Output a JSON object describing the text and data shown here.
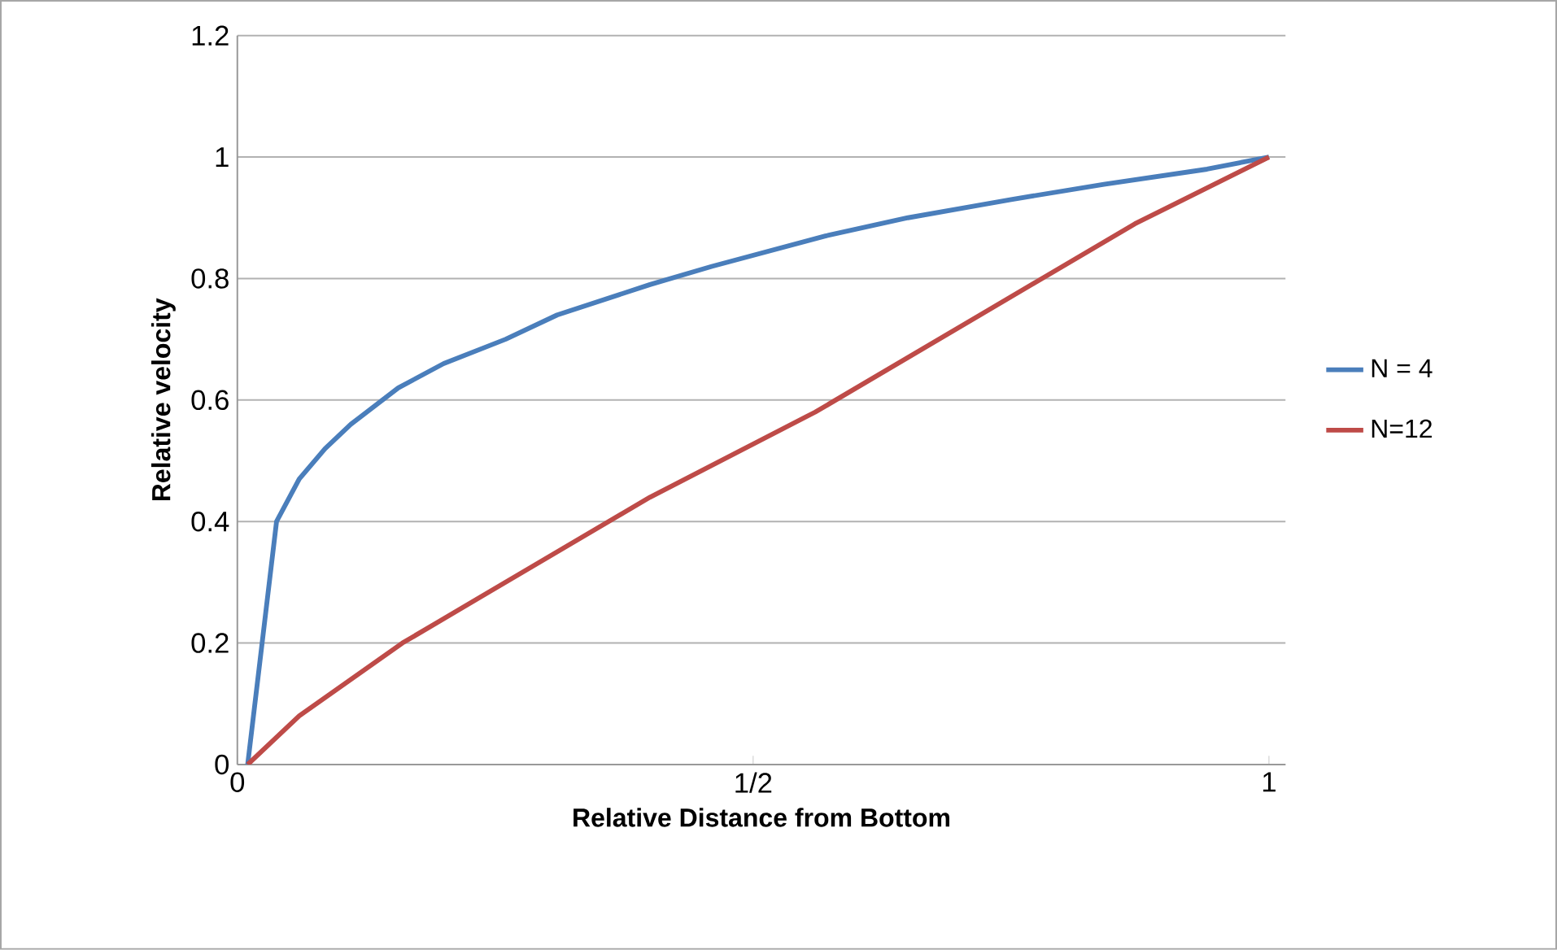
{
  "chart_data": {
    "type": "line",
    "xlabel": "Relative Distance from Bottom",
    "ylabel": "Relative  velocity",
    "xlim": [
      0,
      1.016
    ],
    "xticks": [
      0,
      {
        "value": 0.5,
        "label": "1/2"
      },
      1
    ],
    "ylim": [
      0,
      1.2
    ],
    "yticks": [
      0,
      0.2,
      0.4,
      0.6,
      0.8,
      1,
      1.2
    ],
    "grid": "y",
    "legend": "right",
    "series": [
      {
        "name": "N = 4",
        "color": "#4a7ebb",
        "x": [
          0.01,
          0.038,
          0.06,
          0.085,
          0.11,
          0.156,
          0.2,
          0.26,
          0.31,
          0.4,
          0.46,
          0.57,
          0.65,
          0.75,
          0.84,
          0.94,
          1.0
        ],
        "values": [
          0,
          0.4,
          0.47,
          0.52,
          0.56,
          0.62,
          0.66,
          0.7,
          0.74,
          0.79,
          0.82,
          0.87,
          0.9,
          0.93,
          0.955,
          0.98,
          1.0
        ]
      },
      {
        "name": "N=12",
        "color": "#be4b48",
        "x": [
          0.01,
          0.06,
          0.16,
          0.24,
          0.4,
          0.56,
          0.72,
          0.87,
          1.0
        ],
        "values": [
          0,
          0.08,
          0.2,
          0.28,
          0.44,
          0.58,
          0.74,
          0.89,
          1.0
        ]
      }
    ]
  }
}
